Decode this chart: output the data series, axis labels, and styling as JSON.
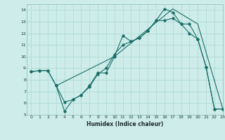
{
  "xlabel": "Humidex (Indice chaleur)",
  "xlim": [
    -0.5,
    23
  ],
  "ylim": [
    5,
    14.5
  ],
  "yticks": [
    5,
    6,
    7,
    8,
    9,
    10,
    11,
    12,
    13,
    14
  ],
  "xticks": [
    0,
    1,
    2,
    3,
    4,
    5,
    6,
    7,
    8,
    9,
    10,
    11,
    12,
    13,
    14,
    15,
    16,
    17,
    18,
    19,
    20,
    21,
    22,
    23
  ],
  "background_color": "#ceecea",
  "grid_color": "#aad8d4",
  "line_color": "#1a6e68",
  "curve1_x": [
    0,
    1,
    2,
    3,
    4,
    5,
    6,
    7,
    8,
    9,
    10,
    11,
    12,
    13,
    14,
    15,
    16,
    17,
    18,
    19,
    20,
    21,
    22,
    23
  ],
  "curve1_y": [
    8.7,
    8.8,
    8.8,
    7.5,
    6.1,
    6.3,
    6.7,
    7.5,
    8.6,
    8.6,
    10.0,
    11.8,
    11.3,
    11.6,
    12.2,
    13.1,
    14.1,
    13.8,
    12.8,
    12.8,
    11.5,
    9.1,
    5.5,
    5.5
  ],
  "curve2_x": [
    0,
    1,
    2,
    3,
    4,
    5,
    6,
    7,
    8,
    9,
    10,
    11,
    12,
    13,
    14,
    15,
    16,
    17,
    18,
    19,
    20,
    21,
    22,
    23
  ],
  "curve2_y": [
    8.7,
    8.8,
    8.8,
    7.5,
    5.3,
    6.3,
    6.7,
    7.4,
    8.5,
    9.0,
    10.2,
    11.0,
    11.3,
    11.6,
    12.2,
    13.1,
    13.1,
    13.3,
    12.8,
    12.0,
    11.5,
    9.1,
    5.5,
    5.5
  ],
  "curve3_x": [
    3,
    10,
    17,
    20,
    23
  ],
  "curve3_y": [
    7.5,
    10.0,
    14.1,
    12.8,
    5.5
  ]
}
